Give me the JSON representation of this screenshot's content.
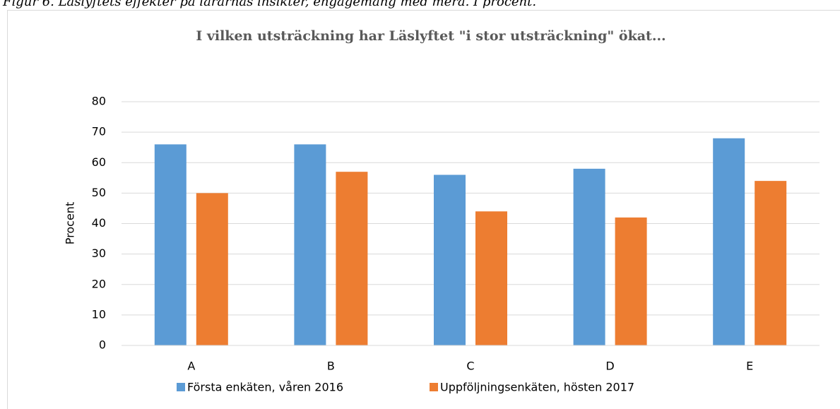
{
  "caption": "Figur 6. Läslyftets effekter på lärarnas insikter, engagemang med mera. I procent.",
  "chart_data": {
    "type": "bar",
    "title": "I vilken utsträckning har Läslyftet \"i stor utsträckning\" ökat...",
    "ylabel": "Procent",
    "categories": [
      "A",
      "B",
      "C",
      "D",
      "E"
    ],
    "series": [
      {
        "name": "Första enkäten, våren 2016",
        "color": "#5b9bd5",
        "values": [
          66,
          66,
          56,
          58,
          68
        ]
      },
      {
        "name": "Uppföljningsenkäten, hösten 2017",
        "color": "#ed7d31",
        "values": [
          50,
          57,
          44,
          42,
          54
        ]
      }
    ],
    "ylim": [
      0,
      80
    ],
    "yticks": [
      0,
      10,
      20,
      30,
      40,
      50,
      60,
      70,
      80
    ],
    "grid": true,
    "legend": "bottom"
  }
}
